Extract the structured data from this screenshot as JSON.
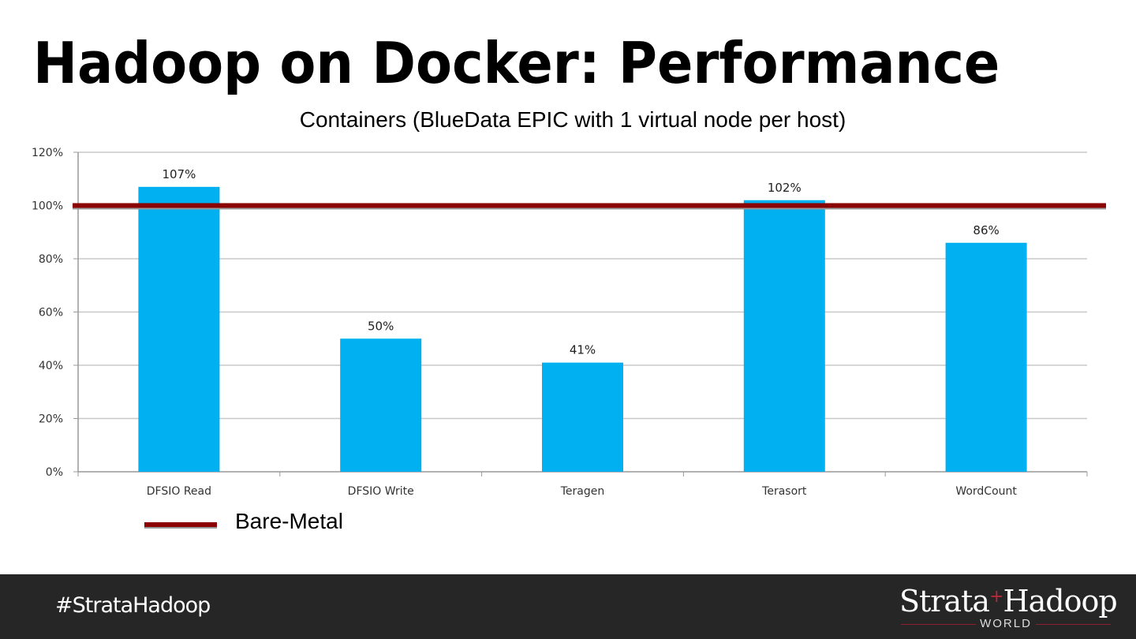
{
  "slide": {
    "title": "Hadoop on Docker: Performance",
    "subtitle": "Containers (BlueData EPIC with 1 virtual node per host)",
    "legend_label": "Bare-Metal",
    "footer_hashtag": "#StrataHadoop",
    "logo_text": "Strata+Hadoop",
    "logo_subtext": "WORLD"
  },
  "colors": {
    "bar": "#00b0f0",
    "baseline": "#8b0000",
    "footer": "#262626"
  },
  "chart_data": {
    "type": "bar",
    "title": "Containers (BlueData EPIC with 1 virtual node per host)",
    "categories": [
      "DFSIO Read",
      "DFSIO Write",
      "Teragen",
      "Terasort",
      "WordCount"
    ],
    "values": [
      107,
      50,
      41,
      102,
      86
    ],
    "data_labels": [
      "107%",
      "50%",
      "41%",
      "102%",
      "86%"
    ],
    "ylim": [
      0,
      120
    ],
    "yticks": [
      0,
      20,
      40,
      60,
      80,
      100,
      120
    ],
    "ytick_labels": [
      "0%",
      "20%",
      "40%",
      "60%",
      "80%",
      "100%",
      "120%"
    ],
    "grid": true,
    "reference_line": {
      "name": "Bare-Metal",
      "value": 100
    },
    "legend": "bottom-left"
  }
}
